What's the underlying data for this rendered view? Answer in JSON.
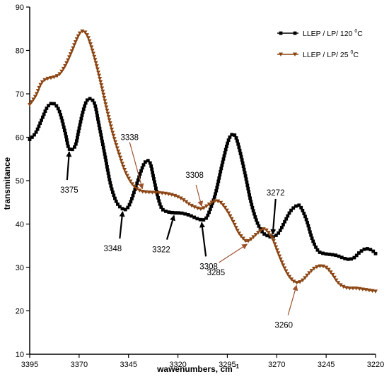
{
  "chart_data": {
    "type": "line",
    "xlabel": "wawenumbers, cm",
    "xlabel_superscript": "−1",
    "ylabel": "transmitance",
    "xlim": [
      3395,
      3220
    ],
    "ylim": [
      10,
      90
    ],
    "x_ticks": [
      3395,
      3370,
      3345,
      3320,
      3295,
      3270,
      3245,
      3220
    ],
    "y_ticks": [
      10,
      20,
      30,
      40,
      50,
      60,
      70,
      80,
      90
    ],
    "grid": false,
    "legend_position": "top-right",
    "colors": {
      "series_120": "#000000",
      "series_25": "#8B4513",
      "marker_25_outline": "#C0392B"
    },
    "series": [
      {
        "name": "LLEP / LP/ 120 ",
        "name_superscript": "0",
        "name_suffix": "C",
        "marker": "square",
        "color": "#000000",
        "points": [
          [
            3395,
            59.5
          ],
          [
            3392,
            61
          ],
          [
            3389,
            64
          ],
          [
            3386,
            67
          ],
          [
            3383,
            67.8
          ],
          [
            3380,
            66
          ],
          [
            3377,
            61
          ],
          [
            3375,
            57.3
          ],
          [
            3372,
            58
          ],
          [
            3370,
            62
          ],
          [
            3368,
            66
          ],
          [
            3366,
            68.5
          ],
          [
            3364,
            68.8
          ],
          [
            3362,
            67.5
          ],
          [
            3360,
            63
          ],
          [
            3357,
            56
          ],
          [
            3354,
            49
          ],
          [
            3351,
            45
          ],
          [
            3348,
            43.5
          ],
          [
            3346,
            43.5
          ],
          [
            3344,
            45
          ],
          [
            3341,
            49
          ],
          [
            3338,
            53
          ],
          [
            3336,
            54.5
          ],
          [
            3334,
            54
          ],
          [
            3332,
            50
          ],
          [
            3330,
            46
          ],
          [
            3328,
            43.5
          ],
          [
            3325,
            42.8
          ],
          [
            3322,
            42.6
          ],
          [
            3318,
            42.5
          ],
          [
            3314,
            42
          ],
          [
            3310,
            41.2
          ],
          [
            3308,
            41
          ],
          [
            3306,
            41.2
          ],
          [
            3304,
            43
          ],
          [
            3301,
            47
          ],
          [
            3298,
            53
          ],
          [
            3295,
            58.5
          ],
          [
            3293,
            60.5
          ],
          [
            3291,
            60.3
          ],
          [
            3289,
            57.5
          ],
          [
            3286,
            51.5
          ],
          [
            3283,
            45
          ],
          [
            3280,
            40.5
          ],
          [
            3277,
            38
          ],
          [
            3274,
            37.2
          ],
          [
            3272,
            37
          ],
          [
            3269,
            38
          ],
          [
            3266,
            40.5
          ],
          [
            3263,
            43
          ],
          [
            3260,
            44.2
          ],
          [
            3258,
            44
          ],
          [
            3255,
            41
          ],
          [
            3252,
            36.5
          ],
          [
            3249,
            33.8
          ],
          [
            3246,
            33.2
          ],
          [
            3243,
            33
          ],
          [
            3240,
            32.8
          ],
          [
            3237,
            32.3
          ],
          [
            3234,
            31.9
          ],
          [
            3231,
            32.2
          ],
          [
            3228,
            33.5
          ],
          [
            3225,
            34.3
          ],
          [
            3222,
            34
          ],
          [
            3220,
            33.2
          ]
        ]
      },
      {
        "name": "LLEP / LP/ 25 ",
        "name_superscript": "0",
        "name_suffix": "C",
        "marker": "triangle-down",
        "color": "#8B4513",
        "points": [
          [
            3395,
            67.5
          ],
          [
            3392,
            69.5
          ],
          [
            3389,
            72.5
          ],
          [
            3386,
            73.5
          ],
          [
            3383,
            73.8
          ],
          [
            3380,
            74.5
          ],
          [
            3377,
            76.5
          ],
          [
            3374,
            79.5
          ],
          [
            3371,
            82.8
          ],
          [
            3369,
            84.3
          ],
          [
            3367,
            84.2
          ],
          [
            3365,
            82.5
          ],
          [
            3362,
            78
          ],
          [
            3359,
            72.5
          ],
          [
            3356,
            66.5
          ],
          [
            3353,
            61
          ],
          [
            3350,
            56.5
          ],
          [
            3347,
            52.5
          ],
          [
            3344,
            49.8
          ],
          [
            3341,
            48.2
          ],
          [
            3338,
            47.5
          ],
          [
            3334,
            47.3
          ],
          [
            3330,
            47.2
          ],
          [
            3326,
            47
          ],
          [
            3322,
            46.6
          ],
          [
            3318,
            45.8
          ],
          [
            3314,
            44.5
          ],
          [
            3311,
            43.8
          ],
          [
            3308,
            43.5
          ],
          [
            3305,
            44.3
          ],
          [
            3302,
            45.2
          ],
          [
            3300,
            45.3
          ],
          [
            3298,
            44.8
          ],
          [
            3295,
            43
          ],
          [
            3292,
            40.5
          ],
          [
            3289,
            37.8
          ],
          [
            3286,
            36.2
          ],
          [
            3285,
            36
          ],
          [
            3283,
            36.5
          ],
          [
            3280,
            37.8
          ],
          [
            3277,
            38.8
          ],
          [
            3275,
            38.5
          ],
          [
            3272,
            36.5
          ],
          [
            3269,
            33
          ],
          [
            3266,
            29.8
          ],
          [
            3263,
            27.5
          ],
          [
            3260,
            26.5
          ],
          [
            3257,
            27
          ],
          [
            3254,
            28.5
          ],
          [
            3251,
            29.8
          ],
          [
            3248,
            30.3
          ],
          [
            3245,
            30
          ],
          [
            3242,
            28.5
          ],
          [
            3239,
            26.5
          ],
          [
            3236,
            25.5
          ],
          [
            3233,
            25.2
          ],
          [
            3230,
            25.2
          ],
          [
            3227,
            25
          ],
          [
            3224,
            24.8
          ],
          [
            3220,
            24.5
          ]
        ]
      }
    ],
    "annotations": [
      {
        "label": "3375",
        "series": 0,
        "x": 3375,
        "y": 57.3
      },
      {
        "label": "3348",
        "series": 0,
        "x": 3348,
        "y": 43.5
      },
      {
        "label": "3322",
        "series": 0,
        "x": 3322,
        "y": 42.6
      },
      {
        "label": "3308",
        "series": 0,
        "x": 3308,
        "y": 41
      },
      {
        "label": "3272",
        "series": 0,
        "x": 3272,
        "y": 37
      },
      {
        "label": "3338",
        "series": 1,
        "x": 3338,
        "y": 47.5
      },
      {
        "label": "3308",
        "series": 1,
        "x": 3308,
        "y": 43.5
      },
      {
        "label": "3285",
        "series": 1,
        "x": 3285,
        "y": 36
      },
      {
        "label": "3260",
        "series": 1,
        "x": 3260,
        "y": 26.5
      }
    ]
  }
}
